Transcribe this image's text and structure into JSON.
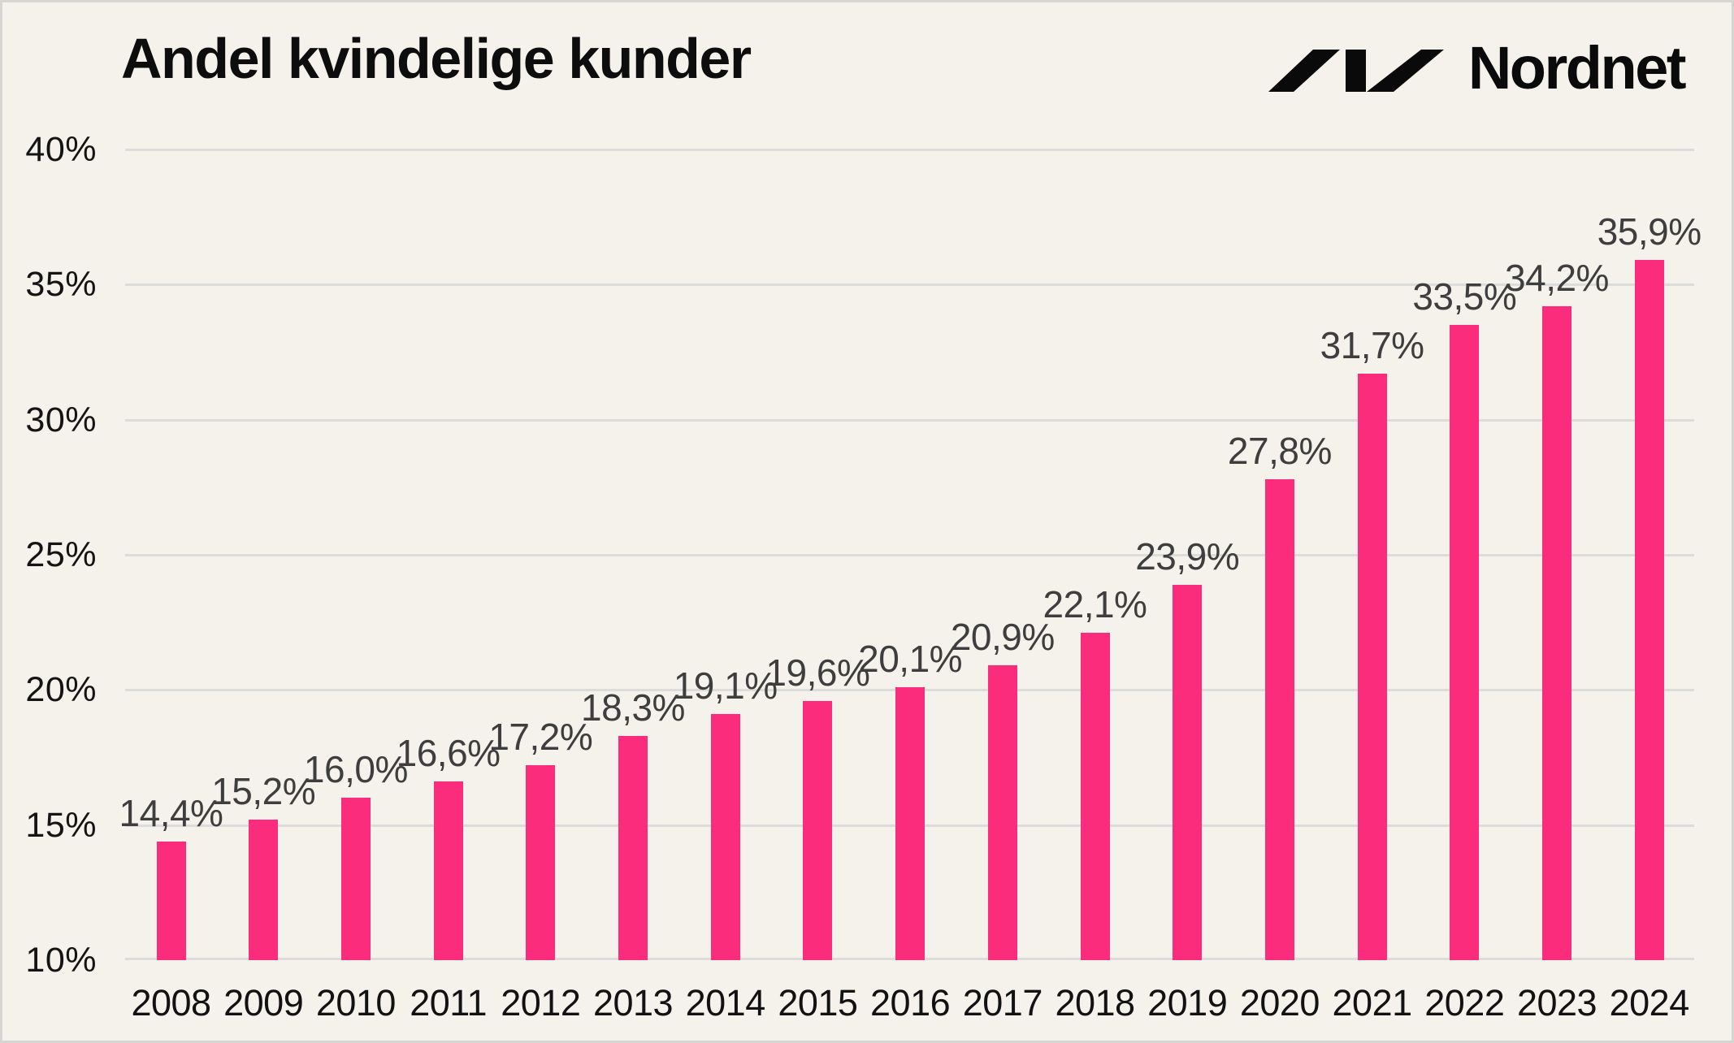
{
  "header": {
    "title": "Andel kvindelige kunder",
    "brand": {
      "name": "Nordnet",
      "logo_icon": "nordnet-slashes-logo",
      "logo_color": "#0A0A0A"
    }
  },
  "chart_data": {
    "type": "bar",
    "title": "Andel kvindelige kunder",
    "categories": [
      "2008",
      "2009",
      "2010",
      "2011",
      "2012",
      "2013",
      "2014",
      "2015",
      "2016",
      "2017",
      "2018",
      "2019",
      "2020",
      "2021",
      "2022",
      "2023",
      "2024"
    ],
    "values": [
      14.4,
      15.2,
      16.0,
      16.6,
      17.2,
      18.3,
      19.1,
      19.6,
      20.1,
      20.9,
      22.1,
      23.9,
      27.8,
      31.7,
      33.5,
      34.2,
      35.9
    ],
    "value_labels": [
      "14,4%",
      "15,2%",
      "16,0%",
      "16,6%",
      "17,2%",
      "18,3%",
      "19,1%",
      "19,6%",
      "20,1%",
      "20,9%",
      "22,1%",
      "23,9%",
      "27,8%",
      "31,7%",
      "33,5%",
      "34,2%",
      "35,9%"
    ],
    "xlabel": "",
    "ylabel": "",
    "ylim": [
      10,
      40
    ],
    "y_ticks": [
      {
        "value": 40,
        "label": "40%"
      },
      {
        "value": 35,
        "label": "35%"
      },
      {
        "value": 30,
        "label": "30%"
      },
      {
        "value": 25,
        "label": "25%"
      },
      {
        "value": 20,
        "label": "20%"
      },
      {
        "value": 15,
        "label": "15%"
      },
      {
        "value": 10,
        "label": "10%"
      }
    ],
    "grid": "horizontal",
    "legend": "none",
    "bar_color": "#FB2C7B",
    "value_label_color": "#3E3E3E",
    "gridline_color": "#DCDCDA",
    "background_color": "#F5F1EB"
  }
}
